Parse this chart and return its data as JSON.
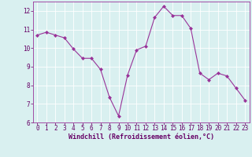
{
  "x": [
    0,
    1,
    2,
    3,
    4,
    5,
    6,
    7,
    8,
    9,
    10,
    11,
    12,
    13,
    14,
    15,
    16,
    17,
    18,
    19,
    20,
    21,
    22,
    23
  ],
  "y": [
    10.7,
    10.85,
    10.7,
    10.55,
    9.95,
    9.45,
    9.45,
    8.85,
    7.35,
    6.35,
    8.55,
    9.9,
    10.1,
    11.65,
    12.25,
    11.75,
    11.75,
    11.05,
    8.65,
    8.3,
    8.65,
    8.5,
    7.85,
    7.2
  ],
  "line_color": "#993399",
  "marker": "D",
  "marker_size": 2.0,
  "bg_color": "#d9f0f0",
  "grid_color": "#ffffff",
  "xlabel": "Windchill (Refroidissement éolien,°C)",
  "xlabel_color": "#660066",
  "tick_color": "#660066",
  "ylim": [
    6,
    12.5
  ],
  "xlim": [
    -0.5,
    23.5
  ],
  "yticks": [
    6,
    7,
    8,
    9,
    10,
    11,
    12
  ],
  "xticks": [
    0,
    1,
    2,
    3,
    4,
    5,
    6,
    7,
    8,
    9,
    10,
    11,
    12,
    13,
    14,
    15,
    16,
    17,
    18,
    19,
    20,
    21,
    22,
    23
  ],
  "spine_color": "#993399",
  "tick_fontsize": 5.5,
  "xlabel_fontsize": 6.0,
  "linewidth": 0.8
}
